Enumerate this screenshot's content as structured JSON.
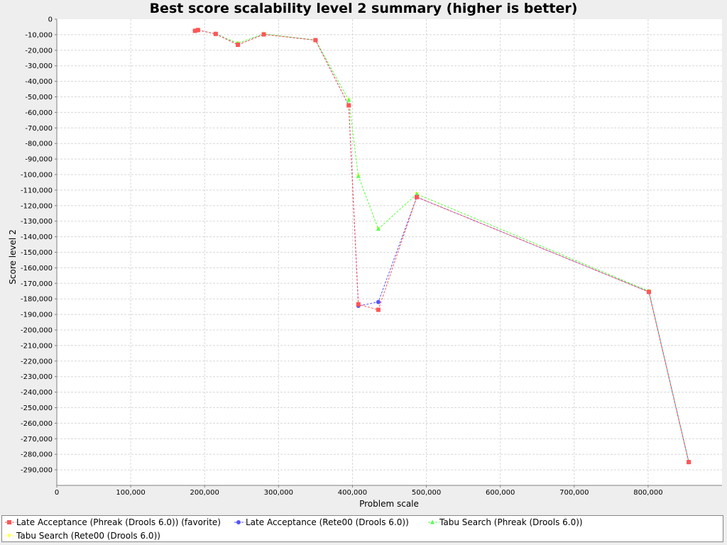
{
  "chart_data": {
    "type": "line",
    "title": "Best score scalability level 2 summary (higher is better)",
    "xlabel": "Problem scale",
    "ylabel": "Score level 2",
    "xlim": [
      0,
      900000
    ],
    "ylim": [
      -300000,
      0
    ],
    "x_ticks": [
      0,
      100000,
      200000,
      300000,
      400000,
      500000,
      600000,
      700000,
      800000
    ],
    "x_tick_labels": [
      "0",
      "100,000",
      "200,000",
      "300,000",
      "400,000",
      "500,000",
      "600,000",
      "700,000",
      "800,000"
    ],
    "y_ticks": [
      0,
      -10000,
      -20000,
      -30000,
      -40000,
      -50000,
      -60000,
      -70000,
      -80000,
      -90000,
      -100000,
      -110000,
      -120000,
      -130000,
      -140000,
      -150000,
      -160000,
      -170000,
      -180000,
      -190000,
      -200000,
      -210000,
      -220000,
      -230000,
      -240000,
      -250000,
      -260000,
      -270000,
      -280000,
      -290000
    ],
    "y_tick_labels": [
      "0",
      "-10,000",
      "-20,000",
      "-30,000",
      "-40,000",
      "-50,000",
      "-60,000",
      "-70,000",
      "-80,000",
      "-90,000",
      "-100,000",
      "-110,000",
      "-120,000",
      "-130,000",
      "-140,000",
      "-150,000",
      "-160,000",
      "-170,000",
      "-180,000",
      "-190,000",
      "-200,000",
      "-210,000",
      "-220,000",
      "-230,000",
      "-240,000",
      "-250,000",
      "-260,000",
      "-270,000",
      "-280,000",
      "-290,000"
    ],
    "grid": true,
    "legend_position": "bottom",
    "series": [
      {
        "name": "Late Acceptance (Phreak (Drools 6.0)) (favorite)",
        "color": "#ff5555",
        "marker": "square",
        "x": [
          187000,
          191000,
          215000,
          245000,
          280000,
          350000,
          395000,
          408000,
          435000,
          487000,
          801000,
          855000
        ],
        "y": [
          -7500,
          -7000,
          -9500,
          -16500,
          -9800,
          -13500,
          -55500,
          -183500,
          -187000,
          -114500,
          -175500,
          -285000
        ]
      },
      {
        "name": "Late Acceptance (Rete00 (Drools 6.0))",
        "color": "#5555ff",
        "marker": "circle",
        "x": [
          187000,
          191000,
          215000,
          245000,
          280000,
          350000,
          395000,
          408000,
          435000,
          487000,
          801000,
          855000
        ],
        "y": [
          -7500,
          -7000,
          -9500,
          -16500,
          -9800,
          -13500,
          -55500,
          -184500,
          -182000,
          -114500,
          -175500,
          -285000
        ]
      },
      {
        "name": "Tabu Search (Phreak (Drools 6.0))",
        "color": "#55ff55",
        "marker": "triangle-up",
        "x": [
          187000,
          191000,
          215000,
          245000,
          280000,
          350000,
          395000,
          408000,
          435000,
          487000,
          801000,
          855000
        ],
        "y": [
          -7500,
          -7000,
          -9500,
          -15500,
          -9500,
          -13500,
          -52000,
          -101000,
          -135000,
          -112500,
          -175000,
          -285000
        ]
      },
      {
        "name": "Tabu Search (Rete00 (Drools 6.0))",
        "color": "#ffff55",
        "marker": "triangle-down",
        "x": [
          187000,
          191000,
          215000,
          245000,
          280000,
          350000,
          395000,
          408000,
          435000,
          487000,
          801000,
          855000
        ],
        "y": [
          -7500,
          -7000,
          -9500,
          -15500,
          -9500,
          -13500,
          -52000,
          -101000,
          -135000,
          -112500,
          -175000,
          -285000
        ]
      }
    ]
  }
}
